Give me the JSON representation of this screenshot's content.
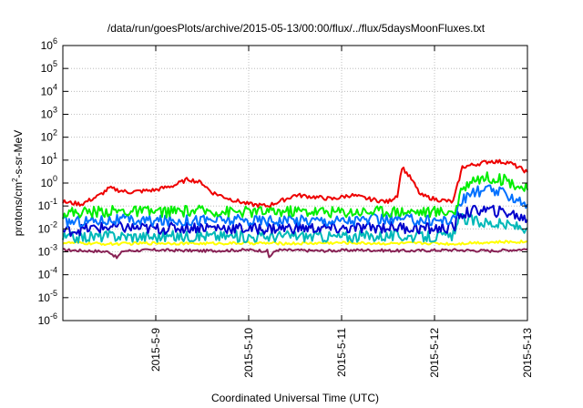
{
  "chart_data": {
    "type": "line",
    "title": "/data/run/goesPlots/archive/2015-05-13/00:00/flux/../flux/5daysMoonFluxes.txt",
    "xlabel": "Coordinated Universal Time (UTC)",
    "ylabel_main": "protons/cm",
    "ylabel_sup": "2",
    "ylabel_tail": "-s-sr-MeV",
    "yscale": "log",
    "ylim": [
      1e-06,
      1000000.0
    ],
    "y_ticks": [
      {
        "base": "10",
        "exp": "-6",
        "value": 1e-06
      },
      {
        "base": "10",
        "exp": "-5",
        "value": 1e-05
      },
      {
        "base": "10",
        "exp": "-4",
        "value": 0.0001
      },
      {
        "base": "10",
        "exp": "-3",
        "value": 0.001
      },
      {
        "base": "10",
        "exp": "-2",
        "value": 0.01
      },
      {
        "base": "10",
        "exp": "-1",
        "value": 0.1
      },
      {
        "base": "10",
        "exp": "0",
        "value": 1
      },
      {
        "base": "10",
        "exp": "1",
        "value": 10
      },
      {
        "base": "10",
        "exp": "2",
        "value": 100
      },
      {
        "base": "10",
        "exp": "3",
        "value": 1000
      },
      {
        "base": "10",
        "exp": "4",
        "value": 10000
      },
      {
        "base": "10",
        "exp": "5",
        "value": 100000
      },
      {
        "base": "10",
        "exp": "6",
        "value": 1000000
      }
    ],
    "x_range_days": [
      8.0,
      13.0
    ],
    "x_ticks": [
      {
        "label": "2015-5-9",
        "day": 9
      },
      {
        "label": "2015-5-10",
        "day": 10
      },
      {
        "label": "2015-5-11",
        "day": 11
      },
      {
        "label": "2015-5-12",
        "day": 12
      },
      {
        "label": "2015-5-13",
        "day": 13
      }
    ],
    "grid": true,
    "series": [
      {
        "color": "#882255",
        "points": [
          [
            8.0,
            0.0012
          ],
          [
            8.3,
            0.0011
          ],
          [
            8.5,
            0.001
          ],
          [
            8.58,
            0.00055
          ],
          [
            8.65,
            0.0011
          ],
          [
            9.0,
            0.0012
          ],
          [
            9.5,
            0.0011
          ],
          [
            10.0,
            0.0012
          ],
          [
            10.2,
            0.0011
          ],
          [
            10.22,
            0.0006
          ],
          [
            10.3,
            0.0012
          ],
          [
            10.8,
            0.0011
          ],
          [
            11.2,
            0.0012
          ],
          [
            11.7,
            0.0011
          ],
          [
            12.2,
            0.0012
          ],
          [
            12.6,
            0.0011
          ],
          [
            13.0,
            0.0013
          ]
        ]
      },
      {
        "color": "#ffff00",
        "points": [
          [
            8.0,
            0.0025
          ],
          [
            8.5,
            0.0022
          ],
          [
            9.0,
            0.0024
          ],
          [
            9.5,
            0.0023
          ],
          [
            10.0,
            0.0024
          ],
          [
            10.5,
            0.0023
          ],
          [
            11.0,
            0.0025
          ],
          [
            11.5,
            0.0023
          ],
          [
            12.0,
            0.0024
          ],
          [
            12.2,
            0.0022
          ],
          [
            12.4,
            0.0025
          ],
          [
            13.0,
            0.0028
          ]
        ]
      },
      {
        "color": "#00b8b8",
        "points": [
          [
            8.0,
            0.004
          ],
          [
            8.5,
            0.005
          ],
          [
            9.0,
            0.0045
          ],
          [
            9.5,
            0.005
          ],
          [
            10.0,
            0.0045
          ],
          [
            10.5,
            0.005
          ],
          [
            11.0,
            0.0045
          ],
          [
            11.5,
            0.005
          ],
          [
            12.0,
            0.0045
          ],
          [
            12.22,
            0.005
          ],
          [
            12.25,
            0.03
          ],
          [
            12.5,
            0.02
          ],
          [
            12.8,
            0.014
          ],
          [
            13.0,
            0.011
          ]
        ]
      },
      {
        "color": "#0000cc",
        "points": [
          [
            8.0,
            0.008
          ],
          [
            8.5,
            0.012
          ],
          [
            9.0,
            0.01
          ],
          [
            9.5,
            0.012
          ],
          [
            10.0,
            0.01
          ],
          [
            10.5,
            0.011
          ],
          [
            11.0,
            0.01
          ],
          [
            11.5,
            0.012
          ],
          [
            12.0,
            0.01
          ],
          [
            12.22,
            0.012
          ],
          [
            12.25,
            0.04
          ],
          [
            12.5,
            0.07
          ],
          [
            12.8,
            0.05
          ],
          [
            13.0,
            0.025
          ]
        ]
      },
      {
        "color": "#0070ff",
        "points": [
          [
            8.0,
            0.02
          ],
          [
            8.5,
            0.025
          ],
          [
            9.0,
            0.022
          ],
          [
            9.5,
            0.025
          ],
          [
            10.0,
            0.023
          ],
          [
            10.5,
            0.025
          ],
          [
            11.0,
            0.023
          ],
          [
            11.5,
            0.026
          ],
          [
            12.0,
            0.024
          ],
          [
            12.22,
            0.025
          ],
          [
            12.25,
            0.1
          ],
          [
            12.4,
            0.4
          ],
          [
            12.6,
            0.5
          ],
          [
            12.8,
            0.3
          ],
          [
            13.0,
            0.12
          ]
        ]
      },
      {
        "color": "#00ee00",
        "points": [
          [
            8.0,
            0.05
          ],
          [
            8.5,
            0.06
          ],
          [
            9.0,
            0.055
          ],
          [
            9.5,
            0.06
          ],
          [
            10.0,
            0.055
          ],
          [
            10.5,
            0.06
          ],
          [
            11.0,
            0.055
          ],
          [
            11.5,
            0.06
          ],
          [
            12.0,
            0.055
          ],
          [
            12.22,
            0.06
          ],
          [
            12.3,
            0.5
          ],
          [
            12.4,
            1.5
          ],
          [
            12.6,
            1.8
          ],
          [
            12.8,
            1.2
          ],
          [
            13.0,
            0.5
          ]
        ]
      },
      {
        "color": "#ee0000",
        "points": [
          [
            8.0,
            0.15
          ],
          [
            8.2,
            0.12
          ],
          [
            8.4,
            0.3
          ],
          [
            8.5,
            0.6
          ],
          [
            8.7,
            0.4
          ],
          [
            9.0,
            0.5
          ],
          [
            9.2,
            0.8
          ],
          [
            9.35,
            1.5
          ],
          [
            9.5,
            1.0
          ],
          [
            9.6,
            0.4
          ],
          [
            9.8,
            0.2
          ],
          [
            10.0,
            0.12
          ],
          [
            10.2,
            0.1
          ],
          [
            10.4,
            0.2
          ],
          [
            10.5,
            0.3
          ],
          [
            10.7,
            0.25
          ],
          [
            10.9,
            0.2
          ],
          [
            11.1,
            0.3
          ],
          [
            11.3,
            0.2
          ],
          [
            11.5,
            0.15
          ],
          [
            11.6,
            0.3
          ],
          [
            11.65,
            5
          ],
          [
            11.75,
            1.5
          ],
          [
            11.85,
            0.3
          ],
          [
            12.0,
            0.2
          ],
          [
            12.2,
            0.15
          ],
          [
            12.3,
            5
          ],
          [
            12.6,
            9
          ],
          [
            12.8,
            8
          ],
          [
            13.0,
            3
          ]
        ]
      }
    ]
  }
}
